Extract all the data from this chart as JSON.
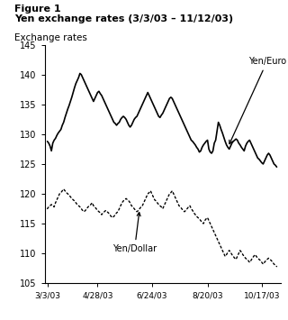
{
  "title_line1": "Figure 1",
  "title_line2": "Yen exchange rates (3/3/03 – 11/12/03)",
  "ylabel": "Exchange rates",
  "ylim": [
    105,
    145
  ],
  "yticks": [
    105,
    110,
    115,
    120,
    125,
    130,
    135,
    140,
    145
  ],
  "xtick_labels": [
    "3/3/03",
    "4/28/03",
    "6/24/03",
    "8/20/03",
    "10/17/03"
  ],
  "xtick_positions": [
    0,
    37,
    77,
    118,
    158
  ],
  "background_color": "#ffffff",
  "yen_euro": [
    128.8,
    128.5,
    128.0,
    127.2,
    128.5,
    129.0,
    129.3,
    129.8,
    130.2,
    130.5,
    130.8,
    131.5,
    132.0,
    132.8,
    133.5,
    134.2,
    134.8,
    135.5,
    136.2,
    137.0,
    137.8,
    138.5,
    139.0,
    139.5,
    140.2,
    140.0,
    139.5,
    139.0,
    138.5,
    138.0,
    137.5,
    137.0,
    136.5,
    136.0,
    135.5,
    136.0,
    136.5,
    137.0,
    137.2,
    136.8,
    136.5,
    136.0,
    135.5,
    135.0,
    134.5,
    134.0,
    133.5,
    133.0,
    132.5,
    132.0,
    131.8,
    131.5,
    131.8,
    132.0,
    132.5,
    132.8,
    133.0,
    132.8,
    132.5,
    132.0,
    131.5,
    131.2,
    131.5,
    132.0,
    132.5,
    132.8,
    133.0,
    133.5,
    134.0,
    134.5,
    135.0,
    135.5,
    136.0,
    136.5,
    137.0,
    136.5,
    136.0,
    135.5,
    135.0,
    134.5,
    134.0,
    133.5,
    133.0,
    132.8,
    133.2,
    133.5,
    134.0,
    134.5,
    135.0,
    135.5,
    136.0,
    136.2,
    136.0,
    135.5,
    135.0,
    134.5,
    134.0,
    133.5,
    133.0,
    132.5,
    132.0,
    131.5,
    131.0,
    130.5,
    130.0,
    129.5,
    129.0,
    128.8,
    128.5,
    128.2,
    127.8,
    127.5,
    127.0,
    127.2,
    127.8,
    128.2,
    128.5,
    128.8,
    129.0,
    127.5,
    127.0,
    126.8,
    127.2,
    128.5,
    129.0,
    130.5,
    132.0,
    131.5,
    130.8,
    130.2,
    129.5,
    128.8,
    128.2,
    127.8,
    127.5,
    128.0,
    128.5,
    128.8,
    129.0,
    129.2,
    129.0,
    128.5,
    128.2,
    127.8,
    127.5,
    127.2,
    128.0,
    128.5,
    128.8,
    129.0,
    128.5,
    128.0,
    127.5,
    127.0,
    126.5,
    126.0,
    125.8,
    125.5,
    125.2,
    125.0,
    125.5,
    126.0,
    126.5,
    126.8,
    126.5,
    126.0,
    125.5,
    125.0,
    124.8,
    124.5
  ],
  "yen_dollar": [
    117.5,
    117.8,
    118.0,
    118.2,
    118.0,
    117.8,
    118.5,
    119.0,
    119.5,
    120.0,
    120.2,
    120.5,
    120.8,
    120.5,
    120.2,
    120.0,
    119.8,
    119.5,
    119.2,
    119.0,
    118.8,
    118.5,
    118.2,
    118.0,
    117.8,
    117.5,
    117.2,
    117.0,
    117.2,
    117.5,
    117.8,
    118.0,
    118.2,
    118.5,
    118.0,
    117.8,
    117.5,
    117.2,
    117.0,
    116.8,
    116.5,
    116.8,
    117.0,
    117.2,
    117.0,
    116.8,
    116.5,
    116.2,
    116.0,
    116.2,
    116.5,
    116.8,
    117.0,
    117.5,
    118.0,
    118.5,
    118.8,
    119.0,
    119.2,
    119.0,
    118.8,
    118.5,
    118.0,
    117.8,
    117.5,
    117.2,
    117.0,
    117.2,
    117.5,
    117.8,
    118.0,
    118.5,
    119.0,
    119.5,
    120.0,
    120.2,
    120.5,
    120.0,
    119.5,
    119.0,
    118.8,
    118.5,
    118.2,
    118.0,
    117.8,
    117.5,
    118.0,
    118.5,
    119.0,
    119.5,
    120.0,
    120.2,
    120.5,
    120.0,
    119.5,
    119.0,
    118.5,
    118.0,
    117.8,
    117.5,
    117.2,
    117.0,
    117.2,
    117.5,
    117.8,
    118.0,
    117.5,
    117.2,
    116.8,
    116.5,
    116.2,
    116.0,
    115.8,
    115.5,
    115.2,
    115.0,
    115.5,
    115.8,
    116.0,
    115.5,
    115.0,
    114.5,
    114.0,
    113.5,
    113.0,
    112.5,
    112.0,
    111.5,
    111.0,
    110.5,
    110.0,
    109.5,
    109.8,
    110.2,
    110.5,
    110.2,
    109.8,
    109.5,
    109.2,
    109.0,
    109.5,
    110.0,
    110.5,
    110.2,
    109.8,
    109.5,
    109.2,
    109.0,
    108.8,
    108.5,
    108.8,
    109.2,
    109.5,
    109.8,
    109.5,
    109.2,
    109.0,
    108.8,
    108.5,
    108.2,
    108.5,
    108.8,
    109.0,
    109.2,
    109.0,
    108.8,
    108.5,
    108.2,
    108.0,
    107.8
  ]
}
